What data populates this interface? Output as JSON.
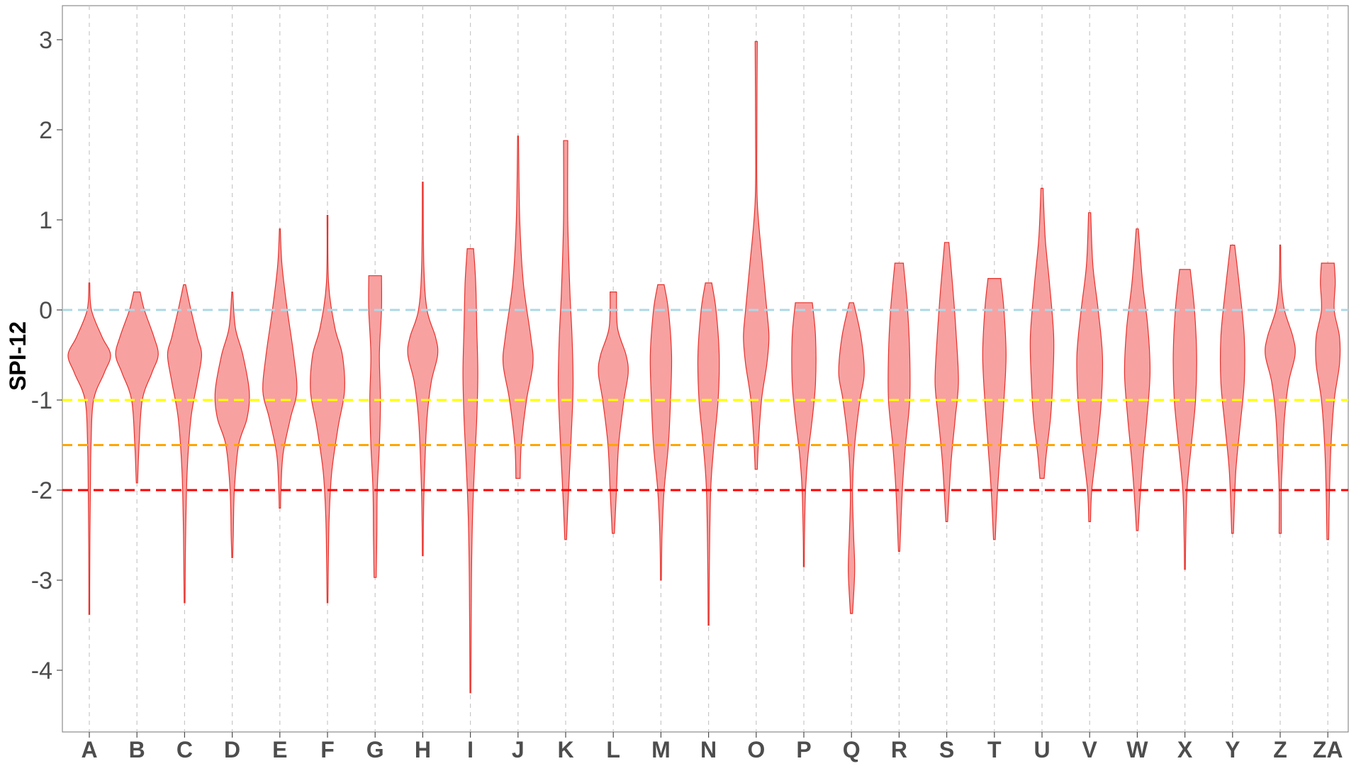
{
  "chart_data": {
    "type": "violin",
    "ylabel": "SPI-12",
    "ylim": [
      -4.65,
      3.35
    ],
    "yticks": [
      3,
      2,
      1,
      0,
      -1,
      -2,
      -3,
      -4
    ],
    "grid": "vertical-dashed",
    "fill_color": "#F8A1A1",
    "stroke_color": "#E8302A",
    "reference_lines": [
      {
        "value": 0,
        "color": "#ADD8E6"
      },
      {
        "value": -1,
        "color": "#FFFF00"
      },
      {
        "value": -1.5,
        "color": "#FFA500"
      },
      {
        "value": -2,
        "color": "#FF0000"
      }
    ],
    "categories": [
      "A",
      "B",
      "C",
      "D",
      "E",
      "F",
      "G",
      "H",
      "I",
      "J",
      "K",
      "L",
      "M",
      "N",
      "O",
      "P",
      "Q",
      "R",
      "S",
      "T",
      "U",
      "V",
      "W",
      "X",
      "Y",
      "Z",
      "ZA"
    ],
    "violins": [
      {
        "category": "A",
        "min": -3.38,
        "max": 0.3,
        "profile": [
          [
            0.3,
            0.02
          ],
          [
            0.0,
            0.1
          ],
          [
            -0.3,
            0.6
          ],
          [
            -0.5,
            1.0
          ],
          [
            -0.7,
            0.7
          ],
          [
            -1.0,
            0.2
          ],
          [
            -1.5,
            0.08
          ],
          [
            -2.0,
            0.05
          ],
          [
            -2.5,
            0.03
          ],
          [
            -3.0,
            0.02
          ],
          [
            -3.38,
            0.02
          ]
        ]
      },
      {
        "category": "B",
        "min": -1.92,
        "max": 0.2,
        "profile": [
          [
            0.2,
            0.15
          ],
          [
            0.0,
            0.35
          ],
          [
            -0.3,
            0.8
          ],
          [
            -0.5,
            1.0
          ],
          [
            -0.7,
            0.7
          ],
          [
            -1.0,
            0.25
          ],
          [
            -1.5,
            0.1
          ],
          [
            -1.92,
            0.03
          ]
        ]
      },
      {
        "category": "C",
        "min": -3.25,
        "max": 0.28,
        "profile": [
          [
            0.28,
            0.05
          ],
          [
            0.0,
            0.3
          ],
          [
            -0.3,
            0.6
          ],
          [
            -0.5,
            0.8
          ],
          [
            -0.8,
            0.6
          ],
          [
            -1.2,
            0.3
          ],
          [
            -1.8,
            0.12
          ],
          [
            -2.5,
            0.05
          ],
          [
            -3.0,
            0.03
          ],
          [
            -3.25,
            0.02
          ]
        ]
      },
      {
        "category": "D",
        "min": -2.75,
        "max": 0.2,
        "profile": [
          [
            0.2,
            0.02
          ],
          [
            -0.2,
            0.15
          ],
          [
            -0.5,
            0.5
          ],
          [
            -0.9,
            0.8
          ],
          [
            -1.2,
            0.7
          ],
          [
            -1.5,
            0.3
          ],
          [
            -2.0,
            0.1
          ],
          [
            -2.5,
            0.05
          ],
          [
            -2.75,
            0.02
          ]
        ]
      },
      {
        "category": "E",
        "min": -2.2,
        "max": 0.9,
        "profile": [
          [
            0.9,
            0.02
          ],
          [
            0.5,
            0.1
          ],
          [
            0.0,
            0.35
          ],
          [
            -0.5,
            0.65
          ],
          [
            -0.9,
            0.8
          ],
          [
            -1.2,
            0.5
          ],
          [
            -1.6,
            0.15
          ],
          [
            -2.0,
            0.05
          ],
          [
            -2.2,
            0.03
          ]
        ]
      },
      {
        "category": "F",
        "min": -3.25,
        "max": 1.05,
        "profile": [
          [
            1.05,
            0.02
          ],
          [
            0.3,
            0.05
          ],
          [
            -0.2,
            0.35
          ],
          [
            -0.5,
            0.7
          ],
          [
            -0.9,
            0.8
          ],
          [
            -1.3,
            0.5
          ],
          [
            -1.8,
            0.2
          ],
          [
            -2.3,
            0.08
          ],
          [
            -2.8,
            0.04
          ],
          [
            -3.25,
            0.02
          ]
        ]
      },
      {
        "category": "G",
        "min": -2.97,
        "max": 0.38,
        "profile": [
          [
            0.38,
            0.3
          ],
          [
            0.0,
            0.3
          ],
          [
            -0.5,
            0.2
          ],
          [
            -1.0,
            0.25
          ],
          [
            -1.5,
            0.2
          ],
          [
            -2.0,
            0.1
          ],
          [
            -2.5,
            0.08
          ],
          [
            -2.97,
            0.05
          ]
        ]
      },
      {
        "category": "H",
        "min": -2.73,
        "max": 1.42,
        "profile": [
          [
            1.42,
            0.02
          ],
          [
            0.5,
            0.05
          ],
          [
            0.0,
            0.2
          ],
          [
            -0.3,
            0.6
          ],
          [
            -0.5,
            0.7
          ],
          [
            -0.8,
            0.4
          ],
          [
            -1.2,
            0.2
          ],
          [
            -1.7,
            0.1
          ],
          [
            -2.2,
            0.04
          ],
          [
            -2.73,
            0.02
          ]
        ]
      },
      {
        "category": "I",
        "min": -4.25,
        "max": 0.68,
        "profile": [
          [
            0.68,
            0.15
          ],
          [
            0.3,
            0.25
          ],
          [
            -0.2,
            0.3
          ],
          [
            -0.7,
            0.35
          ],
          [
            -1.2,
            0.3
          ],
          [
            -1.7,
            0.2
          ],
          [
            -2.3,
            0.1
          ],
          [
            -3.0,
            0.05
          ],
          [
            -4.25,
            0.02
          ]
        ]
      },
      {
        "category": "J",
        "min": -1.87,
        "max": 1.93,
        "profile": [
          [
            1.93,
            0.02
          ],
          [
            1.0,
            0.08
          ],
          [
            0.3,
            0.25
          ],
          [
            -0.3,
            0.6
          ],
          [
            -0.6,
            0.7
          ],
          [
            -1.0,
            0.4
          ],
          [
            -1.5,
            0.15
          ],
          [
            -1.87,
            0.1
          ]
        ]
      },
      {
        "category": "K",
        "min": -2.55,
        "max": 1.88,
        "profile": [
          [
            1.88,
            0.1
          ],
          [
            1.0,
            0.1
          ],
          [
            0.2,
            0.2
          ],
          [
            -0.3,
            0.3
          ],
          [
            -0.8,
            0.35
          ],
          [
            -1.2,
            0.3
          ],
          [
            -1.7,
            0.2
          ],
          [
            -2.2,
            0.1
          ],
          [
            -2.55,
            0.04
          ]
        ]
      },
      {
        "category": "L",
        "min": -2.48,
        "max": 0.2,
        "profile": [
          [
            0.2,
            0.15
          ],
          [
            -0.2,
            0.2
          ],
          [
            -0.5,
            0.6
          ],
          [
            -0.7,
            0.7
          ],
          [
            -1.0,
            0.5
          ],
          [
            -1.5,
            0.25
          ],
          [
            -2.0,
            0.15
          ],
          [
            -2.48,
            0.05
          ]
        ]
      },
      {
        "category": "M",
        "min": -3.0,
        "max": 0.28,
        "profile": [
          [
            0.28,
            0.15
          ],
          [
            0.0,
            0.35
          ],
          [
            -0.5,
            0.5
          ],
          [
            -1.0,
            0.45
          ],
          [
            -1.5,
            0.35
          ],
          [
            -2.0,
            0.15
          ],
          [
            -2.5,
            0.05
          ],
          [
            -3.0,
            0.02
          ]
        ]
      },
      {
        "category": "N",
        "min": -3.5,
        "max": 0.3,
        "profile": [
          [
            0.3,
            0.15
          ],
          [
            0.0,
            0.35
          ],
          [
            -0.5,
            0.5
          ],
          [
            -1.0,
            0.45
          ],
          [
            -1.5,
            0.25
          ],
          [
            -2.0,
            0.1
          ],
          [
            -2.8,
            0.04
          ],
          [
            -3.5,
            0.02
          ]
        ]
      },
      {
        "category": "O",
        "min": -1.77,
        "max": 2.98,
        "profile": [
          [
            2.98,
            0.05
          ],
          [
            2.0,
            0.03
          ],
          [
            1.2,
            0.05
          ],
          [
            0.5,
            0.3
          ],
          [
            0.0,
            0.5
          ],
          [
            -0.3,
            0.6
          ],
          [
            -0.6,
            0.5
          ],
          [
            -1.0,
            0.25
          ],
          [
            -1.5,
            0.1
          ],
          [
            -1.77,
            0.05
          ]
        ]
      },
      {
        "category": "P",
        "min": -2.85,
        "max": 0.08,
        "profile": [
          [
            0.08,
            0.4
          ],
          [
            -0.3,
            0.55
          ],
          [
            -0.8,
            0.55
          ],
          [
            -1.2,
            0.4
          ],
          [
            -1.6,
            0.2
          ],
          [
            -2.0,
            0.08
          ],
          [
            -2.5,
            0.03
          ],
          [
            -2.85,
            0.02
          ]
        ]
      },
      {
        "category": "Q",
        "min": -3.37,
        "max": 0.08,
        "profile": [
          [
            0.08,
            0.1
          ],
          [
            -0.3,
            0.45
          ],
          [
            -0.7,
            0.6
          ],
          [
            -1.0,
            0.4
          ],
          [
            -1.5,
            0.15
          ],
          [
            -2.0,
            0.05
          ],
          [
            -2.5,
            0.1
          ],
          [
            -2.9,
            0.15
          ],
          [
            -3.37,
            0.05
          ]
        ]
      },
      {
        "category": "R",
        "min": -2.68,
        "max": 0.52,
        "profile": [
          [
            0.52,
            0.2
          ],
          [
            0.0,
            0.4
          ],
          [
            -0.5,
            0.5
          ],
          [
            -1.0,
            0.5
          ],
          [
            -1.5,
            0.3
          ],
          [
            -2.0,
            0.15
          ],
          [
            -2.68,
            0.03
          ]
        ]
      },
      {
        "category": "S",
        "min": -2.35,
        "max": 0.75,
        "profile": [
          [
            0.75,
            0.1
          ],
          [
            0.2,
            0.3
          ],
          [
            -0.3,
            0.45
          ],
          [
            -0.8,
            0.55
          ],
          [
            -1.2,
            0.4
          ],
          [
            -1.7,
            0.2
          ],
          [
            -2.35,
            0.04
          ]
        ]
      },
      {
        "category": "T",
        "min": -2.55,
        "max": 0.35,
        "profile": [
          [
            0.35,
            0.3
          ],
          [
            0.0,
            0.45
          ],
          [
            -0.5,
            0.55
          ],
          [
            -1.0,
            0.45
          ],
          [
            -1.5,
            0.3
          ],
          [
            -2.0,
            0.15
          ],
          [
            -2.55,
            0.04
          ]
        ]
      },
      {
        "category": "U",
        "min": -1.87,
        "max": 1.35,
        "profile": [
          [
            1.35,
            0.05
          ],
          [
            0.8,
            0.15
          ],
          [
            0.3,
            0.35
          ],
          [
            -0.3,
            0.55
          ],
          [
            -0.8,
            0.5
          ],
          [
            -1.2,
            0.4
          ],
          [
            -1.6,
            0.2
          ],
          [
            -1.87,
            0.1
          ]
        ]
      },
      {
        "category": "V",
        "min": -2.35,
        "max": 1.08,
        "profile": [
          [
            1.08,
            0.05
          ],
          [
            0.5,
            0.15
          ],
          [
            0.0,
            0.4
          ],
          [
            -0.5,
            0.6
          ],
          [
            -1.0,
            0.55
          ],
          [
            -1.5,
            0.35
          ],
          [
            -2.0,
            0.1
          ],
          [
            -2.35,
            0.04
          ]
        ]
      },
      {
        "category": "W",
        "min": -2.45,
        "max": 0.9,
        "profile": [
          [
            0.9,
            0.05
          ],
          [
            0.3,
            0.25
          ],
          [
            -0.2,
            0.5
          ],
          [
            -0.7,
            0.6
          ],
          [
            -1.2,
            0.45
          ],
          [
            -1.7,
            0.25
          ],
          [
            -2.2,
            0.1
          ],
          [
            -2.45,
            0.04
          ]
        ]
      },
      {
        "category": "X",
        "min": -2.88,
        "max": 0.45,
        "profile": [
          [
            0.45,
            0.25
          ],
          [
            0.0,
            0.45
          ],
          [
            -0.5,
            0.55
          ],
          [
            -1.0,
            0.5
          ],
          [
            -1.5,
            0.3
          ],
          [
            -2.0,
            0.1
          ],
          [
            -2.5,
            0.04
          ],
          [
            -2.88,
            0.02
          ]
        ]
      },
      {
        "category": "Y",
        "min": -2.48,
        "max": 0.72,
        "profile": [
          [
            0.72,
            0.1
          ],
          [
            0.2,
            0.35
          ],
          [
            -0.3,
            0.55
          ],
          [
            -0.8,
            0.55
          ],
          [
            -1.3,
            0.35
          ],
          [
            -1.8,
            0.15
          ],
          [
            -2.48,
            0.04
          ]
        ]
      },
      {
        "category": "Z",
        "min": -2.48,
        "max": 0.72,
        "profile": [
          [
            0.72,
            0.02
          ],
          [
            0.3,
            0.05
          ],
          [
            0.0,
            0.2
          ],
          [
            -0.3,
            0.6
          ],
          [
            -0.5,
            0.7
          ],
          [
            -0.8,
            0.4
          ],
          [
            -1.2,
            0.2
          ],
          [
            -1.7,
            0.1
          ],
          [
            -2.0,
            0.05
          ],
          [
            -2.48,
            0.05
          ]
        ]
      },
      {
        "category": "ZA",
        "min": -2.55,
        "max": 0.52,
        "profile": [
          [
            0.52,
            0.3
          ],
          [
            0.3,
            0.35
          ],
          [
            0.0,
            0.3
          ],
          [
            -0.3,
            0.55
          ],
          [
            -0.6,
            0.55
          ],
          [
            -1.0,
            0.3
          ],
          [
            -1.5,
            0.15
          ],
          [
            -2.0,
            0.08
          ],
          [
            -2.55,
            0.04
          ]
        ]
      }
    ]
  }
}
